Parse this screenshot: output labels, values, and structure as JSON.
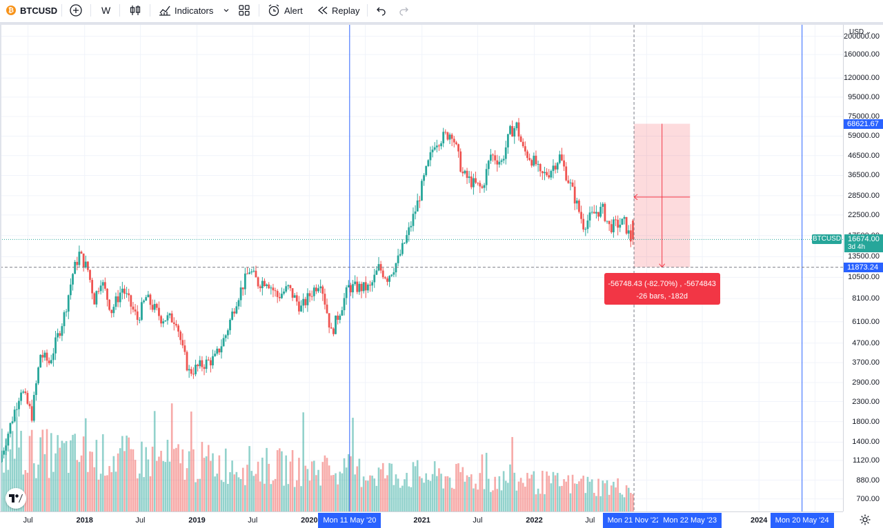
{
  "toolbar": {
    "symbol": "BTCUSD",
    "symbol_badge": "₿",
    "interval": "W",
    "indicators_label": "Indicators",
    "alert_label": "Alert",
    "replay_label": "Replay"
  },
  "price_axis": {
    "currency": "USD",
    "ticks": [
      "200000.00",
      "160000.00",
      "120000.00",
      "95000.00",
      "75000.00",
      "59000.00",
      "46500.00",
      "36500.00",
      "28500.00",
      "22500.00",
      "17500.00",
      "13500.00",
      "10500.00",
      "8100.00",
      "6100.00",
      "4700.00",
      "3700.00",
      "2900.00",
      "2300.00",
      "1800.00",
      "1400.00",
      "1120.00",
      "880.00",
      "700.00"
    ],
    "highlight_high": "68621.67",
    "highlight_low": "11873.24",
    "last_price": "16674.00",
    "countdown": "3d 4h",
    "symbol_tag": "BTCUSD"
  },
  "time_axis": {
    "ticks": [
      {
        "label": "Jul",
        "year": false
      },
      {
        "label": "2018",
        "year": true
      },
      {
        "label": "Jul",
        "year": false
      },
      {
        "label": "2019",
        "year": true
      },
      {
        "label": "Jul",
        "year": false
      },
      {
        "label": "2020",
        "year": true
      },
      {
        "label": "2021",
        "year": true
      },
      {
        "label": "Jul",
        "year": false
      },
      {
        "label": "2022",
        "year": true
      },
      {
        "label": "Jul",
        "year": false
      },
      {
        "label": "2024",
        "year": true
      }
    ],
    "marker_left": "Mon 11 May '20",
    "marker_measure_start": "Mon 21 Nov '22",
    "marker_measure_end": "Mon 22 May '23",
    "marker_right": "Mon 20 May '24"
  },
  "measure": {
    "line1": "-56748.43 (-82.70%) , -5674843",
    "line2": "-26 bars, -182d"
  },
  "colors": {
    "up": "#26a69a",
    "down": "#ef5350",
    "accent": "#2962ff",
    "measure": "#f23645"
  },
  "chart_data": {
    "type": "candlestick",
    "symbol": "BTCUSD",
    "interval": "W",
    "y_scale": "log",
    "ylim": [
      600,
      230000
    ],
    "xlim": [
      "2017-04-01",
      "2024-09-30"
    ],
    "price_path": [
      [
        "2017-04-03",
        1100
      ],
      [
        "2017-06-12",
        2700
      ],
      [
        "2017-07-17",
        1950
      ],
      [
        "2017-08-14",
        4100
      ],
      [
        "2017-09-11",
        3700
      ],
      [
        "2017-09-25",
        4300
      ],
      [
        "2017-10-30",
        6600
      ],
      [
        "2017-11-27",
        11000
      ],
      [
        "2017-12-18",
        14000
      ],
      [
        "2018-01-15",
        11500
      ],
      [
        "2018-02-05",
        8000
      ],
      [
        "2018-02-26",
        10300
      ],
      [
        "2018-04-02",
        7000
      ],
      [
        "2018-05-07",
        9200
      ],
      [
        "2018-06-25",
        6300
      ],
      [
        "2018-07-23",
        8200
      ],
      [
        "2018-09-10",
        6400
      ],
      [
        "2018-10-29",
        6300
      ],
      [
        "2018-11-19",
        4300
      ],
      [
        "2018-12-10",
        3300
      ],
      [
        "2019-01-21",
        3600
      ],
      [
        "2019-03-04",
        3900
      ],
      [
        "2019-04-08",
        5200
      ],
      [
        "2019-05-13",
        8000
      ],
      [
        "2019-06-24",
        11500
      ],
      [
        "2019-07-22",
        9800
      ],
      [
        "2019-08-19",
        10200
      ],
      [
        "2019-09-23",
        8300
      ],
      [
        "2019-10-28",
        9200
      ],
      [
        "2019-12-09",
        7200
      ],
      [
        "2020-01-13",
        8800
      ],
      [
        "2020-02-10",
        10200
      ],
      [
        "2020-03-16",
        5300
      ],
      [
        "2020-04-13",
        7000
      ],
      [
        "2020-05-11",
        9300
      ],
      [
        "2020-07-20",
        9200
      ],
      [
        "2020-08-17",
        11800
      ],
      [
        "2020-09-14",
        10500
      ],
      [
        "2020-10-19",
        13000
      ],
      [
        "2020-11-23",
        18500
      ],
      [
        "2020-12-21",
        26000
      ],
      [
        "2021-01-11",
        35000
      ],
      [
        "2021-02-15",
        55000
      ],
      [
        "2021-04-12",
        62000
      ],
      [
        "2021-05-17",
        37000
      ],
      [
        "2021-06-21",
        33000
      ],
      [
        "2021-07-19",
        31000
      ],
      [
        "2021-08-16",
        47000
      ],
      [
        "2021-09-20",
        43000
      ],
      [
        "2021-10-18",
        62000
      ],
      [
        "2021-11-08",
        67000
      ],
      [
        "2021-11-29",
        50000
      ],
      [
        "2022-01-10",
        42000
      ],
      [
        "2022-01-24",
        36000
      ],
      [
        "2022-02-21",
        38000
      ],
      [
        "2022-03-28",
        46000
      ],
      [
        "2022-05-09",
        30000
      ],
      [
        "2022-06-13",
        20000
      ],
      [
        "2022-07-25",
        23500
      ],
      [
        "2022-08-15",
        24000
      ],
      [
        "2022-09-05",
        19500
      ],
      [
        "2022-10-24",
        20500
      ],
      [
        "2022-11-14",
        16674
      ]
    ],
    "volume_profile": "weekly volume bars at bottom, green for up weeks, red for down weeks",
    "vertical_markers": [
      "2020-05-11",
      "2024-05-20"
    ],
    "measure_tool": {
      "from_date": "2022-11-21",
      "to_date": "2023-05-22",
      "from_price": 68621.67,
      "to_price": 11873.24,
      "change": -56748.43,
      "change_pct": -82.7,
      "bars": -26,
      "days": -182
    }
  }
}
